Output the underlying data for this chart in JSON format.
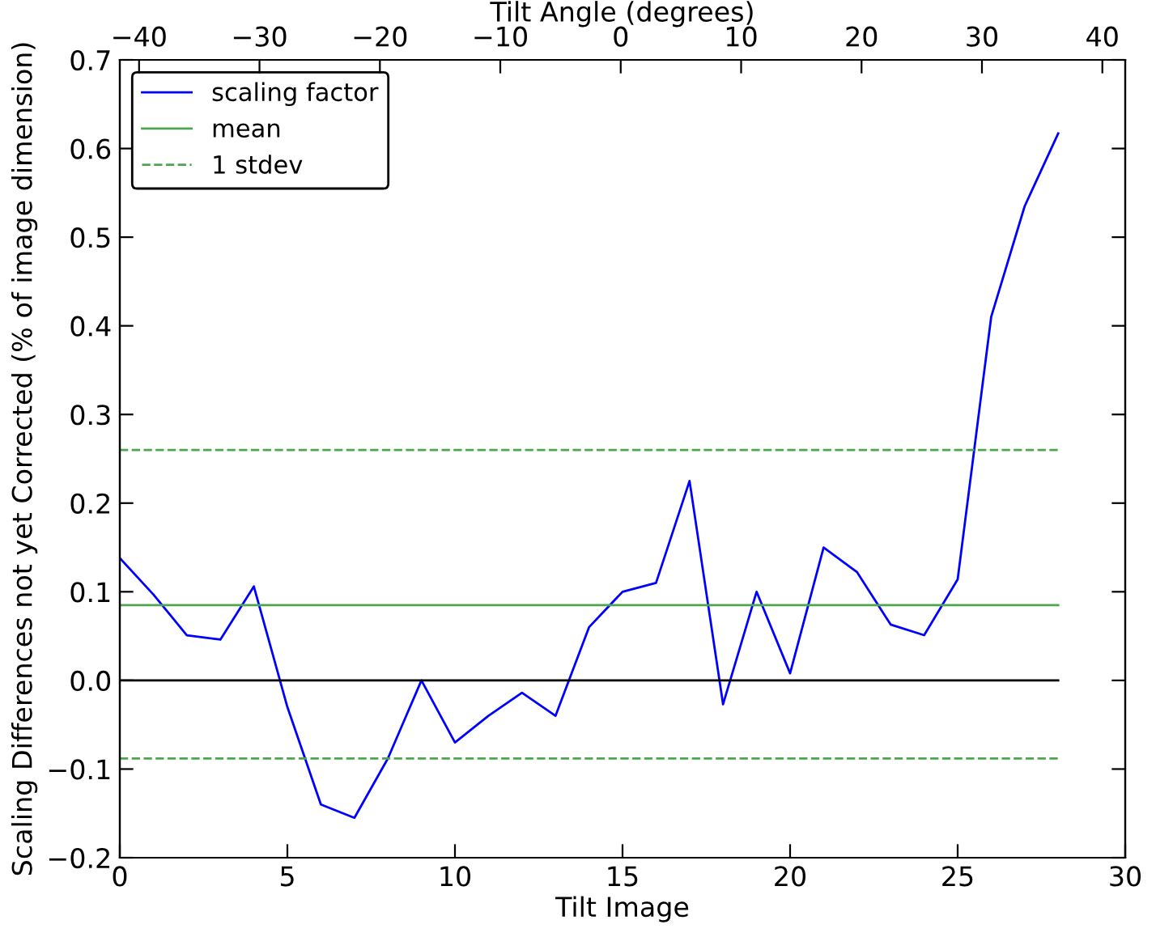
{
  "chart_data": {
    "type": "line",
    "xlabel": "Tilt Image",
    "ylabel": "Scaling Differences not yet Corrected (% of image dimension)",
    "x2label": "Tilt Angle (degrees)",
    "x": [
      0,
      1,
      2,
      3,
      4,
      5,
      6,
      7,
      8,
      9,
      10,
      11,
      12,
      13,
      14,
      15,
      16,
      17,
      18,
      19,
      20,
      21,
      22,
      23,
      24,
      25,
      26,
      27,
      28
    ],
    "series": [
      {
        "name": "scaling factor",
        "color": "#0000ff",
        "values": [
          0.138,
          0.097,
          0.051,
          0.046,
          0.106,
          -0.03,
          -0.14,
          -0.155,
          -0.088,
          0,
          -0.07,
          -0.04,
          -0.014,
          -0.04,
          0.06,
          0.1,
          0.11,
          0.225,
          -0.027,
          0.1,
          0.008,
          0.15,
          0.122,
          0.063,
          0.051,
          0.114,
          0.41,
          0.535,
          0.617
        ]
      },
      {
        "name": "mean",
        "color": "#4da64d",
        "values": [
          0.085,
          0.085,
          0.085,
          0.085,
          0.085,
          0.085,
          0.085,
          0.085,
          0.085,
          0.085,
          0.085,
          0.085,
          0.085,
          0.085,
          0.085,
          0.085,
          0.085,
          0.085,
          0.085,
          0.085,
          0.085,
          0.085,
          0.085,
          0.085,
          0.085,
          0.085,
          0.085,
          0.085,
          0.085
        ]
      },
      {
        "name": "1 stdev",
        "color": "#4da64d",
        "line_style": "dashed",
        "values": [
          0.26,
          0.26,
          0.26,
          0.26,
          0.26,
          0.26,
          0.26,
          0.26,
          0.26,
          0.26,
          0.26,
          0.26,
          0.26,
          0.26,
          0.26,
          0.26,
          0.26,
          0.26,
          0.26,
          0.26,
          0.26,
          0.26,
          0.26,
          0.26,
          0.26,
          0.26,
          0.26,
          0.26,
          0.26
        ]
      },
      {
        "color": "#4da64d",
        "line_style": "dashed",
        "values": [
          -0.088,
          -0.088,
          -0.088,
          -0.088,
          -0.088,
          -0.088,
          -0.088,
          -0.088,
          -0.088,
          -0.088,
          -0.088,
          -0.088,
          -0.088,
          -0.088,
          -0.088,
          -0.088,
          -0.088,
          -0.088,
          -0.088,
          -0.088,
          -0.088,
          -0.088,
          -0.088,
          -0.088,
          -0.088,
          -0.088,
          -0.088,
          -0.088,
          -0.088
        ]
      },
      {
        "color": "#000000",
        "values": [
          0,
          0,
          0,
          0,
          0,
          0,
          0,
          0,
          0,
          0,
          0,
          0,
          0,
          0,
          0,
          0,
          0,
          0,
          0,
          0,
          0,
          0,
          0,
          0,
          0,
          0,
          0,
          0,
          0
        ]
      }
    ],
    "xlim": [
      0,
      30
    ],
    "xticks": [
      0,
      5,
      10,
      15,
      20,
      25,
      30
    ],
    "ylim": [
      -0.2,
      0.7
    ],
    "yticks": [
      {
        "value": -0.2,
        "label": "−0.2"
      },
      {
        "value": -0.1,
        "label": "−0.1"
      },
      {
        "value": 0,
        "label": "0.0"
      },
      {
        "value": 0.1,
        "label": "0.1"
      },
      {
        "value": 0.2,
        "label": "0.2"
      },
      {
        "value": 0.3,
        "label": "0.3"
      },
      {
        "value": 0.4,
        "label": "0.4"
      },
      {
        "value": 0.5,
        "label": "0.5"
      },
      {
        "value": 0.6,
        "label": "0.6"
      },
      {
        "value": 0.7,
        "label": "0.7"
      }
    ],
    "x2lim": [
      -41.6,
      41.9
    ],
    "x2ticks": [
      {
        "value": -40,
        "label": "−40"
      },
      {
        "value": -30,
        "label": "−30"
      },
      {
        "value": -20,
        "label": "−20"
      },
      {
        "value": -10,
        "label": "−10"
      },
      0,
      10,
      20,
      30,
      40
    ],
    "legend": "top left",
    "grid": false,
    "marker": "none",
    "line_style": "solid"
  }
}
